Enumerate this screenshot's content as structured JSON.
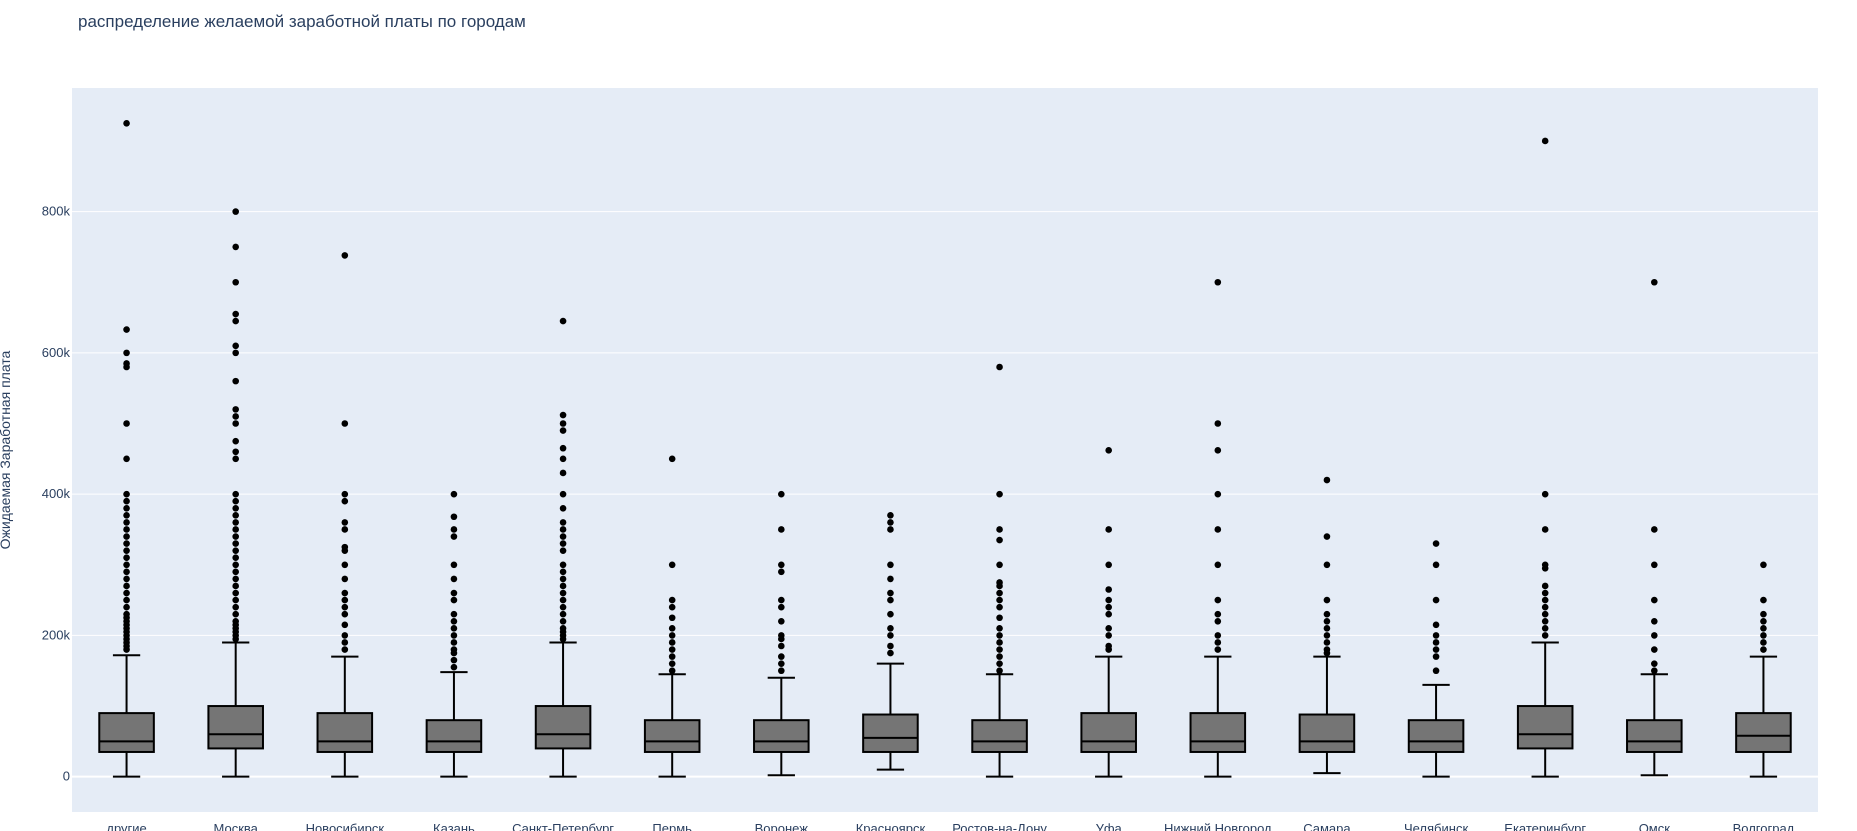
{
  "colors": {
    "plot_bg": "#e5ecf6",
    "grid": "#ffffff",
    "box_fill": "#757575",
    "stroke": "#000000",
    "text": "#2a3f5f"
  },
  "chart_data": {
    "type": "box",
    "title": "распределение желаемой заработной платы по городам",
    "xlabel": "",
    "ylabel": "Ожидаемая Заработная плата",
    "ylim": [
      -50000,
      975000
    ],
    "y_ticks": [
      {
        "value": 0,
        "label": "0"
      },
      {
        "value": 200000,
        "label": "200k"
      },
      {
        "value": 400000,
        "label": "400k"
      },
      {
        "value": 600000,
        "label": "600k"
      },
      {
        "value": 800000,
        "label": "800k"
      }
    ],
    "grid": true,
    "legend": "none",
    "categories": [
      "другие",
      "Москва",
      "Новосибирск",
      "Казань",
      "Санкт-Петербург",
      "Пермь",
      "Воронеж",
      "Красноярск",
      "Ростов-на-Дону",
      "Уфа",
      "Нижний Новгород",
      "Самара",
      "Челябинск",
      "Екатеринбург",
      "Омск",
      "Волгоград"
    ],
    "boxes": [
      {
        "category": "другие",
        "min": 0,
        "q1": 35000,
        "median": 50000,
        "q3": 90000,
        "max": 172000,
        "outliers": [
          180000,
          185000,
          190000,
          195000,
          200000,
          205000,
          210000,
          215000,
          220000,
          225000,
          230000,
          240000,
          250000,
          260000,
          270000,
          280000,
          290000,
          300000,
          310000,
          320000,
          330000,
          340000,
          350000,
          360000,
          370000,
          380000,
          390000,
          400000,
          450000,
          500000,
          580000,
          585000,
          600000,
          633000,
          925000
        ]
      },
      {
        "category": "Москва",
        "min": 0,
        "q1": 40000,
        "median": 60000,
        "q3": 100000,
        "max": 190000,
        "outliers": [
          195000,
          200000,
          205000,
          210000,
          215000,
          220000,
          230000,
          240000,
          250000,
          260000,
          270000,
          280000,
          290000,
          300000,
          310000,
          320000,
          330000,
          340000,
          350000,
          360000,
          370000,
          380000,
          390000,
          400000,
          450000,
          460000,
          475000,
          500000,
          510000,
          520000,
          560000,
          600000,
          610000,
          645000,
          655000,
          700000,
          750000,
          800000
        ]
      },
      {
        "category": "Новосибирск",
        "min": 0,
        "q1": 35000,
        "median": 50000,
        "q3": 90000,
        "max": 170000,
        "outliers": [
          180000,
          190000,
          200000,
          215000,
          230000,
          240000,
          250000,
          260000,
          280000,
          300000,
          320000,
          325000,
          350000,
          360000,
          390000,
          400000,
          500000,
          738000
        ]
      },
      {
        "category": "Казань",
        "min": 0,
        "q1": 35000,
        "median": 50000,
        "q3": 80000,
        "max": 148000,
        "outliers": [
          155000,
          165000,
          175000,
          180000,
          190000,
          200000,
          210000,
          220000,
          230000,
          250000,
          260000,
          280000,
          300000,
          340000,
          350000,
          368000,
          400000
        ]
      },
      {
        "category": "Санкт-Петербург",
        "min": 0,
        "q1": 40000,
        "median": 60000,
        "q3": 100000,
        "max": 190000,
        "outliers": [
          195000,
          200000,
          205000,
          210000,
          220000,
          230000,
          240000,
          250000,
          260000,
          270000,
          280000,
          290000,
          300000,
          320000,
          330000,
          340000,
          350000,
          360000,
          380000,
          400000,
          430000,
          450000,
          465000,
          490000,
          500000,
          512000,
          645000
        ]
      },
      {
        "category": "Пермь",
        "min": 0,
        "q1": 35000,
        "median": 50000,
        "q3": 80000,
        "max": 145000,
        "outliers": [
          150000,
          160000,
          170000,
          180000,
          190000,
          200000,
          210000,
          225000,
          240000,
          250000,
          300000,
          450000
        ]
      },
      {
        "category": "Воронеж",
        "min": 2000,
        "q1": 35000,
        "median": 50000,
        "q3": 80000,
        "max": 140000,
        "outliers": [
          150000,
          160000,
          170000,
          185000,
          195000,
          200000,
          220000,
          240000,
          250000,
          290000,
          300000,
          350000,
          400000
        ]
      },
      {
        "category": "Красноярск",
        "min": 10000,
        "q1": 35000,
        "median": 55000,
        "q3": 88000,
        "max": 160000,
        "outliers": [
          175000,
          185000,
          200000,
          210000,
          230000,
          250000,
          260000,
          280000,
          300000,
          350000,
          360000,
          370000
        ]
      },
      {
        "category": "Ростов-на-Дону",
        "min": 0,
        "q1": 35000,
        "median": 50000,
        "q3": 80000,
        "max": 145000,
        "outliers": [
          150000,
          160000,
          170000,
          180000,
          190000,
          200000,
          210000,
          225000,
          240000,
          250000,
          260000,
          270000,
          275000,
          300000,
          335000,
          350000,
          400000,
          580000
        ]
      },
      {
        "category": "Уфа",
        "min": 0,
        "q1": 35000,
        "median": 50000,
        "q3": 90000,
        "max": 170000,
        "outliers": [
          180000,
          185000,
          200000,
          210000,
          230000,
          240000,
          250000,
          265000,
          300000,
          350000,
          462000
        ]
      },
      {
        "category": "Нижний Новгород",
        "min": 0,
        "q1": 35000,
        "median": 50000,
        "q3": 90000,
        "max": 170000,
        "outliers": [
          180000,
          190000,
          200000,
          220000,
          230000,
          250000,
          300000,
          350000,
          400000,
          462000,
          500000,
          700000
        ]
      },
      {
        "category": "Самара",
        "min": 5000,
        "q1": 35000,
        "median": 50000,
        "q3": 88000,
        "max": 170000,
        "outliers": [
          175000,
          180000,
          190000,
          200000,
          210000,
          220000,
          230000,
          250000,
          300000,
          340000,
          420000
        ]
      },
      {
        "category": "Челябинск",
        "min": 0,
        "q1": 35000,
        "median": 50000,
        "q3": 80000,
        "max": 130000,
        "outliers": [
          150000,
          170000,
          180000,
          190000,
          200000,
          215000,
          250000,
          300000,
          330000
        ]
      },
      {
        "category": "Екатеринбург",
        "min": 0,
        "q1": 40000,
        "median": 60000,
        "q3": 100000,
        "max": 190000,
        "outliers": [
          200000,
          210000,
          220000,
          230000,
          240000,
          250000,
          260000,
          270000,
          295000,
          300000,
          350000,
          400000,
          900000
        ]
      },
      {
        "category": "Омск",
        "min": 2000,
        "q1": 35000,
        "median": 50000,
        "q3": 80000,
        "max": 145000,
        "outliers": [
          150000,
          160000,
          180000,
          200000,
          220000,
          250000,
          300000,
          350000,
          700000
        ]
      },
      {
        "category": "Волгоград",
        "min": 0,
        "q1": 35000,
        "median": 58000,
        "q3": 90000,
        "max": 170000,
        "outliers": [
          180000,
          190000,
          200000,
          210000,
          220000,
          230000,
          250000,
          300000
        ]
      }
    ]
  }
}
